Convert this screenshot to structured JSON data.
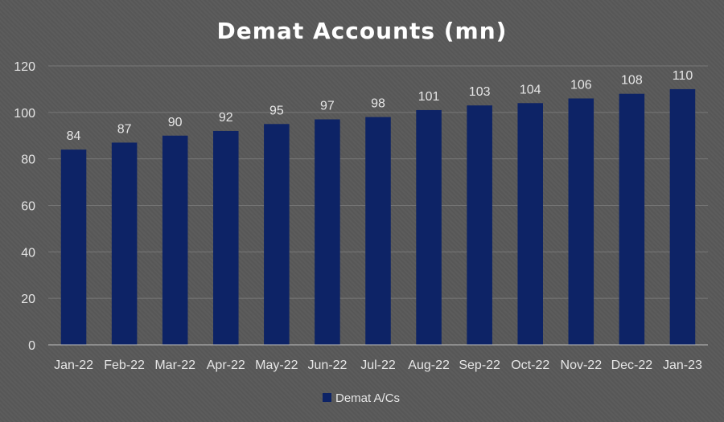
{
  "chart_data": {
    "type": "bar",
    "title": "Demat Accounts (mn)",
    "categories": [
      "Jan-22",
      "Feb-22",
      "Mar-22",
      "Apr-22",
      "May-22",
      "Jun-22",
      "Jul-22",
      "Aug-22",
      "Sep-22",
      "Oct-22",
      "Nov-22",
      "Dec-22",
      "Jan-23"
    ],
    "series": [
      {
        "name": "Demat A/Cs",
        "values": [
          84,
          87,
          90,
          92,
          95,
          97,
          98,
          101,
          103,
          104,
          106,
          108,
          110
        ]
      }
    ],
    "ylim": [
      0,
      120
    ],
    "yticks": [
      0,
      20,
      40,
      60,
      80,
      100,
      120
    ],
    "grid": true,
    "legend": "bottom-center",
    "data_labels": true,
    "colors": {
      "bar": "#0d2366",
      "grid": "#777777",
      "axis": "#bfbfbf",
      "text": "#e6e6e6",
      "background": "#595959"
    }
  }
}
